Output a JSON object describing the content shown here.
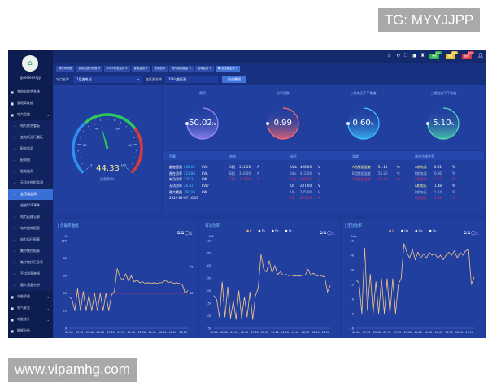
{
  "watermarks": {
    "top": "TG: MYYJJPP",
    "bottom": "www.vipamhg.com"
  },
  "brand": "guestenergy",
  "sidebar": {
    "items": [
      {
        "label": "变电站综合系统",
        "icon": "home-icon",
        "chevron": true
      },
      {
        "label": "管理驾驶舱",
        "icon": "monitor-icon"
      },
      {
        "label": "电力监控",
        "icon": "globe-icon",
        "chevron": true
      },
      {
        "label": "电力综合看板",
        "sub": true
      },
      {
        "label": "变电所运行看板",
        "sub": true
      },
      {
        "label": "配电监测",
        "sub": true
      },
      {
        "label": "配电图",
        "sub": true
      },
      {
        "label": "能耗监测",
        "sub": true
      },
      {
        "label": "无功补偿柜监测",
        "sub": true
      },
      {
        "label": "变压器监测",
        "sub": true,
        "active": true
      },
      {
        "label": "谐波SOE事件",
        "sub": true
      },
      {
        "label": "电力运维记录",
        "sub": true
      },
      {
        "label": "电力能耗报表",
        "sub": true
      },
      {
        "label": "电力运行报表",
        "sub": true
      },
      {
        "label": "集抄集抄报表",
        "sub": true
      },
      {
        "label": "集抄集抄汇总表",
        "sub": true
      },
      {
        "label": "平均功率曲线",
        "sub": true
      },
      {
        "label": "最大需量分析",
        "sub": true
      },
      {
        "label": "电能质量",
        "icon": "folder-icon",
        "chevron": true
      },
      {
        "label": "电气安全",
        "icon": "person-icon",
        "chevron": true
      },
      {
        "label": "电能统计",
        "icon": "bar-chart-icon",
        "chevron": true
      },
      {
        "label": "能耗分析",
        "icon": "list-icon",
        "chevron": true
      }
    ]
  },
  "topbar": {
    "icons": [
      "search-icon",
      "refresh-icon",
      "fullscreen-icon",
      "qr-icon",
      "shirt-icon",
      "user-icon"
    ],
    "badges": [
      {
        "label": "告警",
        "count": "99+",
        "color": "#28b24b"
      },
      {
        "label": "预警",
        "count": "99+",
        "color": "#e8c12a"
      },
      {
        "label": "故障",
        "count": "99+",
        "color": "#e0364a"
      }
    ]
  },
  "breadcrumbs": [
    "管理驾驶舱",
    "变电站运行看板 ×",
    "10kV配电监测 ×",
    "配电监测 ×",
    "配电图 ×",
    "电气接线图监 ×",
    "能耗监测 ×",
    "● 变压器监测 ×"
  ],
  "filters": {
    "station_label": "站点名称",
    "station_value": "1层变电站",
    "transformer_label": "变压器名称",
    "transformer_value": "10kV变压器",
    "history_button": "历史数据"
  },
  "gauge": {
    "value": "44.33",
    "value_num": 44.33,
    "label": "负载率(%)",
    "ticks": [
      "0",
      "20",
      "40",
      "60",
      "80",
      "100"
    ],
    "zones": [
      {
        "to": 35,
        "color": "#2f8ef0"
      },
      {
        "to": 70,
        "color": "#2ec95a"
      },
      {
        "to": 100,
        "color": "#d93a3a"
      }
    ]
  },
  "rings": [
    {
      "title": "频率",
      "value": "50.02",
      "unit": "Hz",
      "color": "#9f8cff",
      "fraction": 0.5
    },
    {
      "title": "功率因数",
      "value": "0.99",
      "unit": "",
      "color": "#ff6a6a",
      "fraction": 0.5
    },
    {
      "title": "三相电压不平衡度",
      "value": "0.60",
      "unit": "%",
      "color": "#3fc6ff",
      "fraction": 0.5
    },
    {
      "title": "三相电流不平衡度",
      "value": "5.10",
      "unit": "%",
      "color": "#4fe0b0",
      "fraction": 0.5
    }
  ],
  "table": {
    "load": {
      "header": "负载",
      "rows": [
        {
          "label": "额定容量",
          "value": "500.00",
          "unit": "kVA"
        },
        {
          "label": "视在功率",
          "value": "221.84",
          "unit": "kVA"
        },
        {
          "label": "有功功率",
          "value": "220.21",
          "unit": "kW"
        },
        {
          "label": "无功功率",
          "value": "26.81",
          "unit": "kVar"
        },
        {
          "label": "最大需量",
          "value": "360.00",
          "unit": "kW"
        }
      ],
      "timestamp": "2022-02-07 10:07"
    },
    "current": {
      "header": "电流",
      "rows": [
        {
          "label": "A相",
          "value": "311.20",
          "unit": "A"
        },
        {
          "label": "B相",
          "value": "316.00",
          "unit": "A"
        },
        {
          "label": "C相",
          "value": "313.60",
          "unit": "A"
        }
      ]
    },
    "voltage": {
      "header": "电压",
      "rows": [
        {
          "label": "Uab",
          "value": "408.00",
          "unit": "V"
        },
        {
          "label": "Ubc",
          "value": "412.00",
          "unit": "V"
        },
        {
          "label": "Uca",
          "value": "409.00",
          "unit": "V"
        },
        {
          "label": "Ua",
          "value": "237.00",
          "unit": "V"
        },
        {
          "label": "Ub",
          "value": "235.00",
          "unit": "V"
        },
        {
          "label": "Uc",
          "value": "237.00",
          "unit": "V"
        }
      ]
    },
    "temperature": {
      "header": "温度",
      "rows": [
        {
          "label": "A相绕组温度",
          "value": "51.10",
          "unit": "℃"
        },
        {
          "label": "B相绕组温度",
          "value": "54.20",
          "unit": "℃"
        },
        {
          "label": "C相绕组温度",
          "value": "53.40",
          "unit": "℃"
        }
      ]
    },
    "harmonic": {
      "header": "谐波总畸变率",
      "rows": [
        {
          "label": "A相电流",
          "value": "0.81",
          "unit": "%"
        },
        {
          "label": "B相电流",
          "value": "0.96",
          "unit": "%"
        },
        {
          "label": "C相电流",
          "value": "1.02",
          "unit": "%"
        },
        {
          "label": "A相电压",
          "value": "1.48",
          "unit": "%"
        },
        {
          "label": "B相电压",
          "value": "1.24",
          "unit": "%"
        },
        {
          "label": "C相电压",
          "value": "1.33",
          "unit": "%"
        }
      ]
    }
  },
  "chart_tools": "⧉⧉◯⤓",
  "chart_data": [
    {
      "type": "line",
      "title": "负载率曲线",
      "ylabel": "%",
      "ylim": [
        0,
        100
      ],
      "yticks": [
        0,
        20,
        40,
        60,
        80,
        100
      ],
      "xticks": [
        "00:00",
        "01:50",
        "03:40",
        "05:30",
        "07:20",
        "09:10",
        "11:00",
        "12:50",
        "14:40",
        "16:30",
        "18:20",
        "20:10"
      ],
      "xrange": [
        "00:00",
        "21:00"
      ],
      "grid": false,
      "marklines": [
        {
          "value": 70,
          "label": "70",
          "color": "#d9304f"
        },
        {
          "value": 40,
          "label": "40",
          "color": "#d9304f"
        }
      ],
      "x": [
        "00:00",
        "00:30",
        "01:00",
        "01:30",
        "02:00",
        "02:30",
        "03:00",
        "03:30",
        "04:00",
        "04:30",
        "05:00",
        "05:30",
        "06:00",
        "06:30",
        "07:00",
        "07:30",
        "08:00",
        "08:30",
        "09:00",
        "09:30",
        "10:00",
        "10:30",
        "11:00",
        "11:30",
        "12:00",
        "12:30",
        "13:00",
        "13:30",
        "14:00",
        "14:30",
        "15:00",
        "15:30",
        "16:00",
        "16:30",
        "17:00",
        "17:30",
        "18:00",
        "18:30",
        "19:00",
        "19:30",
        "20:00",
        "20:30",
        "21:00"
      ],
      "series": [
        {
          "color": "#f5c58a",
          "values": [
            36,
            33,
            20,
            45,
            20,
            42,
            20,
            38,
            20,
            40,
            20,
            40,
            20,
            40,
            20,
            38,
            42,
            68,
            58,
            55,
            62,
            54,
            60,
            53,
            55,
            52,
            53,
            51,
            52,
            51,
            52,
            51,
            52,
            52,
            55,
            52,
            53,
            51,
            52,
            51,
            50,
            40,
            43
          ]
        }
      ]
    },
    {
      "type": "line",
      "title": "有功功率",
      "ylabel": "kW",
      "ylim": [
        50,
        400
      ],
      "yticks": [
        50,
        100,
        150,
        200,
        250,
        300,
        350,
        400
      ],
      "xticks": [
        "00:00",
        "01:50",
        "03:40",
        "05:30",
        "07:20",
        "09:10",
        "11:00",
        "12:50",
        "14:40",
        "16:30",
        "18:20",
        "20:10"
      ],
      "xrange": [
        "00:00",
        "21:00"
      ],
      "grid": false,
      "legend": [
        "P",
        "Pa",
        "Pb",
        "Pc"
      ],
      "legend_colors": [
        "#f5a85a",
        "#ffffff",
        "#ffffff",
        "#ffffff"
      ],
      "x": [
        "00:00",
        "00:30",
        "01:00",
        "01:30",
        "02:00",
        "02:30",
        "03:00",
        "03:30",
        "04:00",
        "04:30",
        "05:00",
        "05:30",
        "06:00",
        "06:30",
        "07:00",
        "07:30",
        "08:00",
        "08:30",
        "09:00",
        "09:30",
        "10:00",
        "10:30",
        "11:00",
        "11:30",
        "12:00",
        "12:30",
        "13:00",
        "13:30",
        "14:00",
        "14:30",
        "15:00",
        "15:30",
        "16:00",
        "16:30",
        "17:00",
        "17:30",
        "18:00",
        "18:30",
        "19:00",
        "19:30",
        "20:00",
        "20:30",
        "21:00"
      ],
      "series": [
        {
          "name": "P",
          "color": "#f5c58a",
          "values": [
            180,
            165,
            95,
            235,
            95,
            215,
            90,
            160,
            85,
            200,
            90,
            175,
            95,
            195,
            85,
            180,
            210,
            345,
            285,
            275,
            320,
            270,
            300,
            265,
            275,
            262,
            265,
            260,
            262,
            258,
            260,
            258,
            262,
            262,
            285,
            262,
            270,
            258,
            262,
            258,
            255,
            195,
            220
          ]
        }
      ]
    },
    {
      "type": "line",
      "title": "无功功率",
      "ylabel": "kVar",
      "ylim": [
        -10,
        50
      ],
      "yticks": [
        -10,
        0,
        10,
        20,
        30,
        40,
        50
      ],
      "xticks": [
        "00:00",
        "01:50",
        "03:40",
        "05:30",
        "07:20",
        "09:10",
        "11:00",
        "12:50",
        "14:40",
        "16:30",
        "18:20",
        "20:10"
      ],
      "xrange": [
        "00:00",
        "21:00"
      ],
      "grid": false,
      "legend": [
        "Q",
        "Qa",
        "Qb",
        "Qc"
      ],
      "legend_colors": [
        "#f5a85a",
        "#ffffff",
        "#ffffff",
        "#ffffff"
      ],
      "x": [
        "00:00",
        "00:30",
        "01:00",
        "01:30",
        "02:00",
        "02:30",
        "03:00",
        "03:30",
        "04:00",
        "04:30",
        "05:00",
        "05:30",
        "06:00",
        "06:30",
        "07:00",
        "07:30",
        "08:00",
        "08:30",
        "09:00",
        "09:30",
        "10:00",
        "10:30",
        "11:00",
        "11:30",
        "12:00",
        "12:30",
        "13:00",
        "13:30",
        "14:00",
        "14:30",
        "15:00",
        "15:30",
        "16:00",
        "16:30",
        "17:00",
        "17:30",
        "18:00",
        "18:30",
        "19:00",
        "19:30",
        "20:00",
        "20:30",
        "21:00"
      ],
      "series": [
        {
          "name": "Q",
          "color": "#f5c58a",
          "values": [
            23,
            21,
            0,
            45,
            2,
            27,
            0,
            22,
            0,
            24,
            0,
            24,
            0,
            24,
            0,
            20,
            24,
            48,
            42,
            38,
            44,
            37,
            42,
            38,
            41,
            38,
            42,
            40,
            41,
            38,
            40,
            37,
            40,
            42,
            40,
            43,
            38,
            42,
            40,
            43,
            44,
            20,
            25
          ]
        }
      ]
    }
  ]
}
